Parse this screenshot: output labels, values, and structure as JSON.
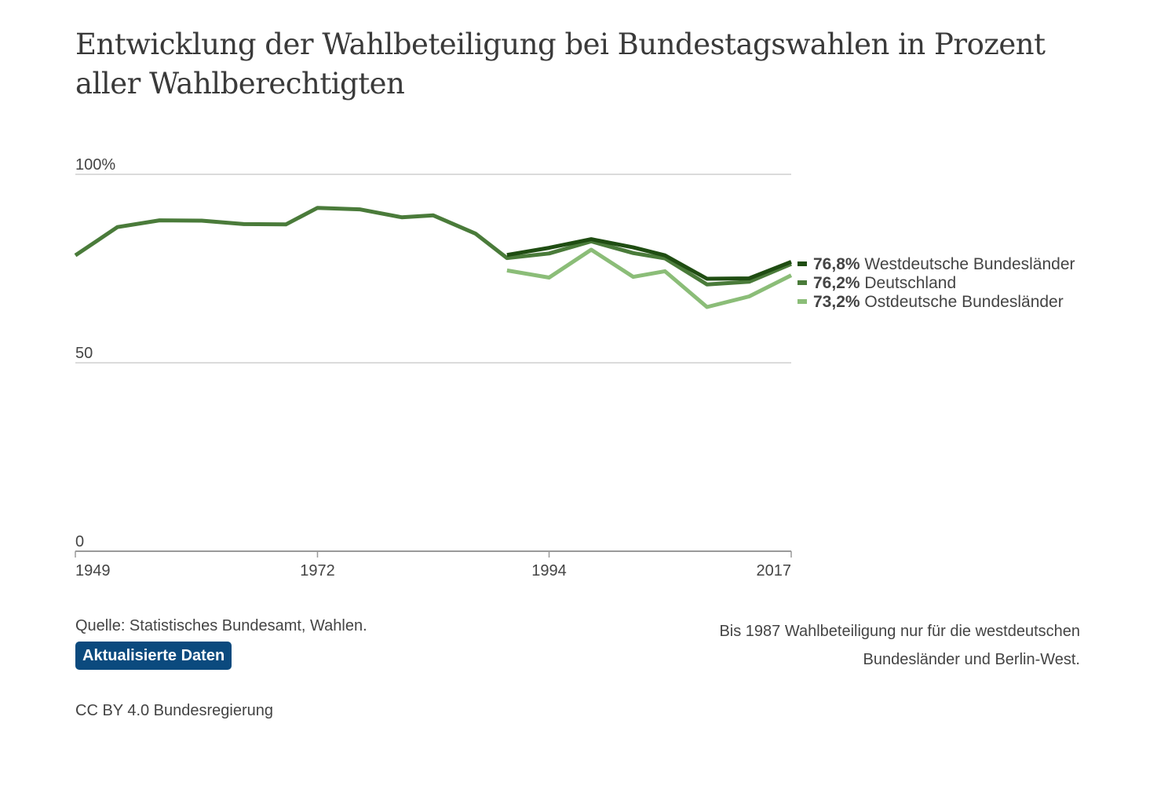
{
  "title": "Entwicklung der Wahlbeteiligung bei Bundestagswahlen in Prozent aller Wahlberechtigten",
  "chart_data": {
    "type": "line",
    "ylim": [
      0,
      100
    ],
    "y_ticks": [
      {
        "value": 0,
        "label": "0"
      },
      {
        "value": 50,
        "label": "50"
      },
      {
        "value": 100,
        "label": "100%"
      }
    ],
    "x_range": [
      1949,
      2017
    ],
    "x_ticks": [
      1949,
      1972,
      1994,
      2017
    ],
    "grid": "horizontal",
    "legend_placement": "right",
    "series": [
      {
        "name": "Westdeutsche Bundesländer",
        "label_value": "76,8%",
        "color": "#1f4d12",
        "x": [
          1990,
          1994,
          1998,
          2002,
          2005,
          2009,
          2013,
          2017
        ],
        "values": [
          78.6,
          80.5,
          82.8,
          80.6,
          78.5,
          72.3,
          72.4,
          76.8
        ]
      },
      {
        "name": "Deutschland",
        "label_value": "76,2%",
        "color": "#4a7b3a",
        "x": [
          1949,
          1953,
          1957,
          1961,
          1965,
          1969,
          1972,
          1976,
          1980,
          1983,
          1987,
          1990,
          1994,
          1998,
          2002,
          2005,
          2009,
          2013,
          2017
        ],
        "values": [
          78.5,
          86.0,
          87.8,
          87.7,
          86.8,
          86.7,
          91.1,
          90.7,
          88.6,
          89.1,
          84.3,
          77.8,
          79.0,
          82.2,
          79.1,
          77.7,
          70.8,
          71.5,
          76.2
        ]
      },
      {
        "name": "Ostdeutsche Bundesländer",
        "label_value": "73,2%",
        "color": "#8bbd78",
        "x": [
          1990,
          1994,
          1998,
          2002,
          2005,
          2009,
          2013,
          2017
        ],
        "values": [
          74.5,
          72.6,
          80.0,
          72.8,
          74.3,
          64.8,
          67.6,
          73.2
        ]
      }
    ]
  },
  "footer": {
    "source": "Quelle: Statistisches Bundesamt, Wahlen.",
    "button_label": "Aktualisierte Daten",
    "note_line1": "Bis 1987 Wahlbeteiligung nur für die westdeutschen",
    "note_line2": "Bundesländer und Berlin-West.",
    "license": "CC BY 4.0 Bundesregierung"
  }
}
